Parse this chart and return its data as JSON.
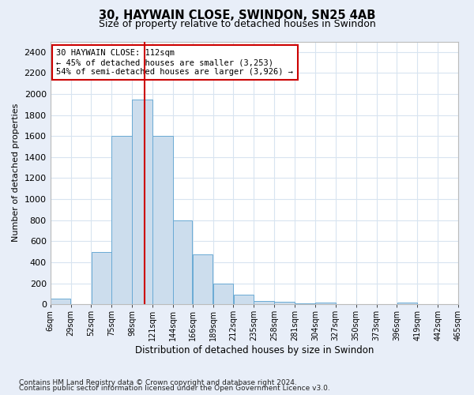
{
  "title1": "30, HAYWAIN CLOSE, SWINDON, SN25 4AB",
  "title2": "Size of property relative to detached houses in Swindon",
  "xlabel": "Distribution of detached houses by size in Swindon",
  "ylabel": "Number of detached properties",
  "footnote1": "Contains HM Land Registry data © Crown copyright and database right 2024.",
  "footnote2": "Contains public sector information licensed under the Open Government Licence v3.0.",
  "annotation_line1": "30 HAYWAIN CLOSE: 112sqm",
  "annotation_line2": "← 45% of detached houses are smaller (3,253)",
  "annotation_line3": "54% of semi-detached houses are larger (3,926) →",
  "bar_color": "#ccdded",
  "bar_edge_color": "#6aaad4",
  "bar_left_edges": [
    6,
    29,
    52,
    75,
    98,
    121,
    144,
    166,
    189,
    212,
    235,
    258,
    281,
    304,
    327,
    350,
    373,
    396,
    419,
    442
  ],
  "bar_widths": [
    23,
    23,
    23,
    23,
    23,
    23,
    22,
    23,
    23,
    23,
    23,
    23,
    23,
    23,
    23,
    23,
    23,
    23,
    23,
    23
  ],
  "bar_heights": [
    50,
    0,
    500,
    1600,
    1950,
    1600,
    800,
    475,
    200,
    90,
    30,
    25,
    10,
    15,
    0,
    0,
    0,
    15,
    0,
    0
  ],
  "tick_labels": [
    "6sqm",
    "29sqm",
    "52sqm",
    "75sqm",
    "98sqm",
    "121sqm",
    "144sqm",
    "166sqm",
    "189sqm",
    "212sqm",
    "235sqm",
    "258sqm",
    "281sqm",
    "304sqm",
    "327sqm",
    "350sqm",
    "373sqm",
    "396sqm",
    "419sqm",
    "442sqm",
    "465sqm"
  ],
  "ylim": [
    0,
    2500
  ],
  "yticks": [
    0,
    200,
    400,
    600,
    800,
    1000,
    1200,
    1400,
    1600,
    1800,
    2000,
    2200,
    2400
  ],
  "vline_x": 112,
  "vline_color": "#cc0000",
  "annotation_box_color": "#cc0000",
  "plot_bg_color": "#ffffff",
  "fig_bg_color": "#e8eef8",
  "grid_color": "#d8e4f0",
  "title1_fontsize": 10.5,
  "title2_fontsize": 9,
  "ylabel_fontsize": 8,
  "xlabel_fontsize": 8.5,
  "tick_fontsize": 7,
  "annotation_fontsize": 7.5,
  "footnote_fontsize": 6.5
}
